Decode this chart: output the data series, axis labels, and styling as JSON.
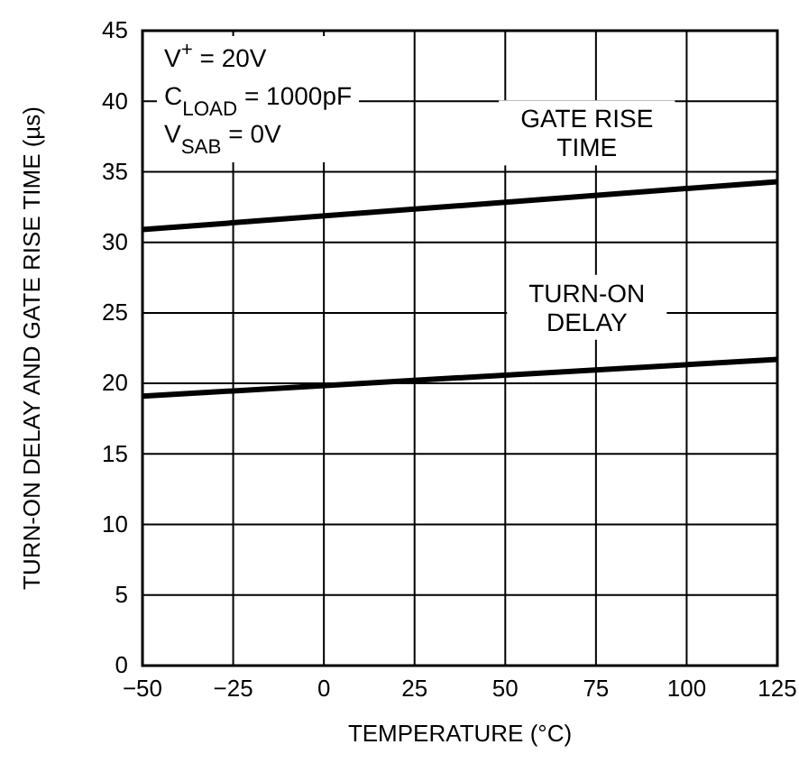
{
  "chart_data": {
    "type": "line",
    "xlabel": "TEMPERATURE (°C)",
    "ylabel": "TURN-ON DELAY AND GATE RISE TIME (µs)",
    "x": [
      -50,
      125
    ],
    "series": [
      {
        "name": "GATE RISE TIME",
        "color": "#000000",
        "values": [
          30.9,
          34.3
        ]
      },
      {
        "name": "TURN-ON DELAY",
        "color": "#000000",
        "values": [
          19.1,
          21.7
        ]
      }
    ],
    "xlim": [
      -50,
      125
    ],
    "ylim": [
      0,
      45
    ],
    "xticks": [
      {
        "value": -50,
        "label": "−50"
      },
      {
        "value": -25,
        "label": "−25"
      },
      0,
      25,
      50,
      75,
      100,
      125
    ],
    "yticks": [
      0,
      5,
      10,
      15,
      20,
      25,
      30,
      35,
      40,
      45
    ],
    "grid": true,
    "marker": "none",
    "line_style": "solid",
    "annotations": [
      "V$^{+}$ = 20V",
      "C$_{LOAD}$ = 1000pF",
      "V$_{SAB}$ = 0V"
    ]
  }
}
